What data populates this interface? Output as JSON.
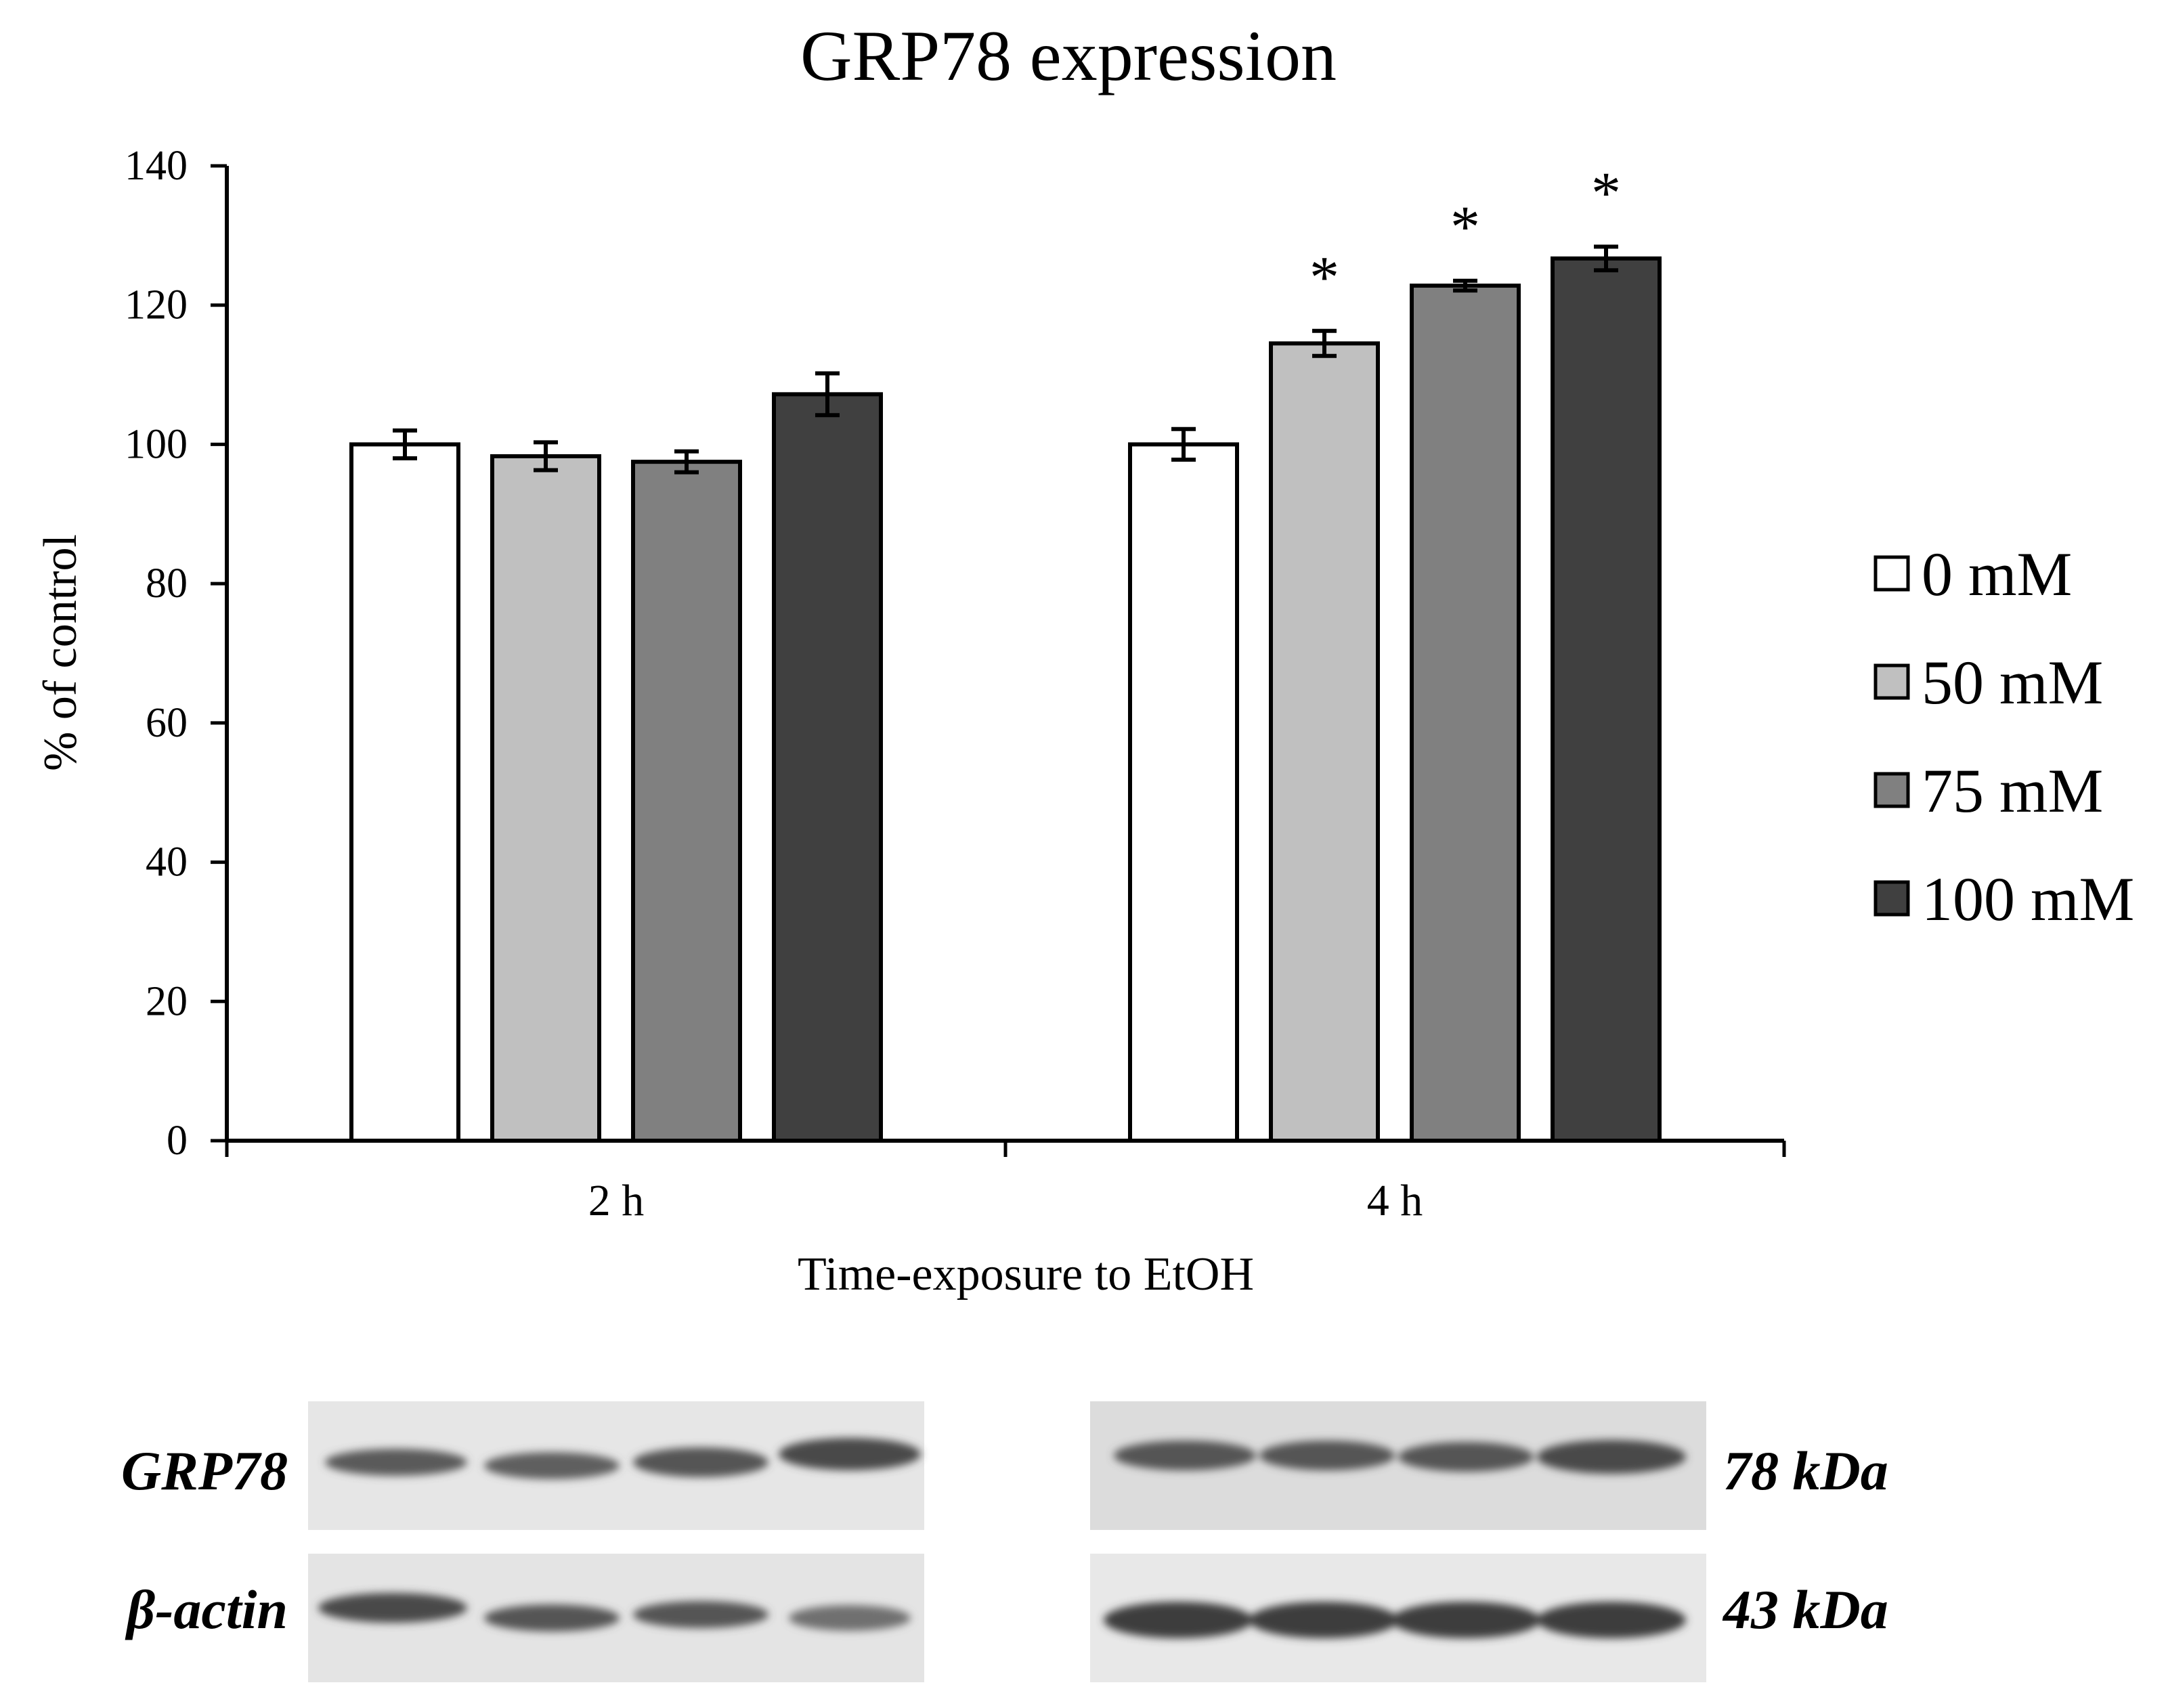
{
  "chart_data": {
    "type": "bar",
    "title": "GRP78 expression",
    "xlabel": "Time-exposure to EtOH",
    "ylabel": "% of control",
    "categories": [
      "2 h",
      "4 h"
    ],
    "ylim": [
      0,
      140
    ],
    "yticks": [
      "0",
      "20",
      "40",
      "60",
      "80",
      "100",
      "120",
      "140"
    ],
    "series": [
      {
        "name": "0 mM",
        "color": "#ffffff",
        "values": [
          100,
          100
        ],
        "errors": [
          2.0,
          2.2
        ],
        "significance": [
          "",
          ""
        ]
      },
      {
        "name": "50 mM",
        "color": "#c0c0c0",
        "values": [
          98.3,
          114.5
        ],
        "errors": [
          2.0,
          1.8
        ],
        "significance": [
          "",
          "*"
        ]
      },
      {
        "name": "75 mM",
        "color": "#808080",
        "values": [
          97.5,
          122.8
        ],
        "errors": [
          1.5,
          0.7
        ],
        "significance": [
          "",
          "*"
        ]
      },
      {
        "name": "100 mM",
        "color": "#404040",
        "values": [
          107.2,
          126.7
        ],
        "errors": [
          3.0,
          1.7
        ],
        "significance": [
          "",
          "*"
        ]
      }
    ],
    "legend": "right",
    "grid": false
  },
  "blot": {
    "rows": [
      {
        "protein": "GRP78",
        "mw": "78 kDa"
      },
      {
        "protein": "β-actin",
        "mw": "43 kDa"
      }
    ]
  }
}
